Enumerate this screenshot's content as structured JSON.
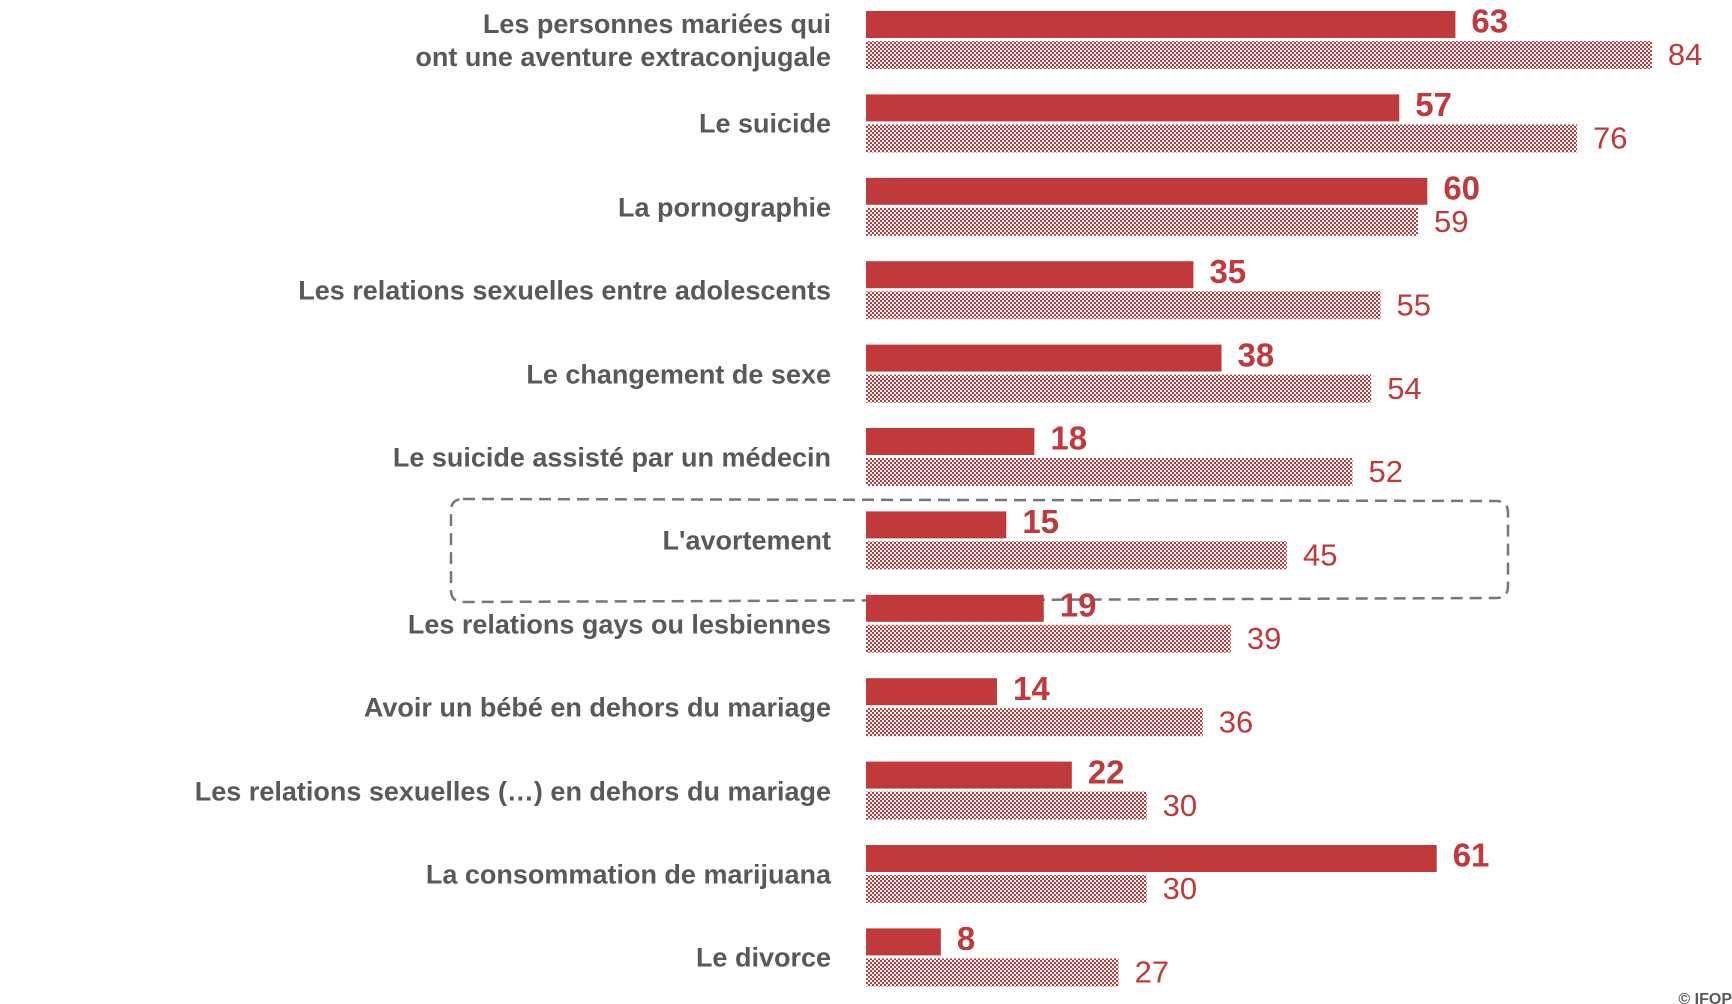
{
  "chart_data": {
    "type": "barh",
    "categories": [
      "Les personnes mariées qui\nont une aventure extraconjugale",
      "Le suicide",
      "La pornographie",
      "Les relations sexuelles entre adolescents",
      "Le changement de sexe",
      "Le suicide assisté par un médecin",
      "L'avortement",
      "Les relations gays ou lesbiennes",
      "Avoir un bébé en dehors du mariage",
      "Les relations sexuelles (…) en dehors du mariage",
      "La consommation de marijuana",
      "Le divorce"
    ],
    "series": [
      {
        "color": "#c0393b",
        "fill": "solid",
        "values": [
          63,
          57,
          60,
          35,
          38,
          18,
          15,
          19,
          14,
          22,
          61,
          8
        ]
      },
      {
        "color": "#c0393b",
        "fill": "checkered",
        "values": [
          84,
          76,
          59,
          55,
          54,
          52,
          45,
          39,
          36,
          30,
          30,
          27
        ]
      }
    ],
    "xlim": [
      0,
      90
    ],
    "source": "© IFOP"
  }
}
